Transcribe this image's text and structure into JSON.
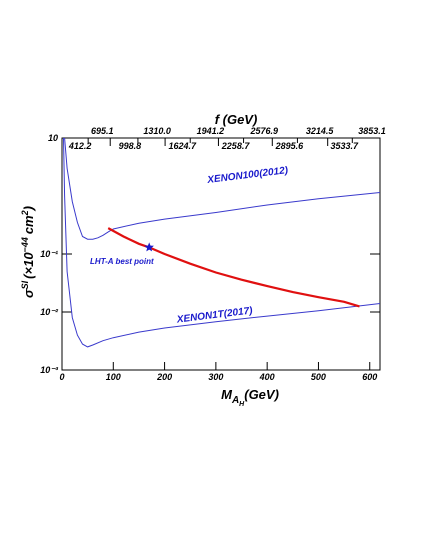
{
  "chart_data": {
    "type": "line",
    "title": "f (GeV)",
    "xlabel": [
      "M",
      "A",
      "H",
      "(GeV)"
    ],
    "ylabel": [
      "σ",
      "SI",
      "(×10",
      "−44",
      "cm",
      "2",
      ")"
    ],
    "xlim": [
      0,
      620
    ],
    "xticks": [
      0,
      100,
      200,
      300,
      400,
      500,
      600
    ],
    "ylim": [
      0.001,
      10
    ],
    "yticks": [
      {
        "value": 0.001,
        "label": "10⁻³"
      },
      {
        "value": 0.01,
        "label": "10⁻²"
      },
      {
        "value": 0.1,
        "label": "10⁻¹"
      },
      10
    ],
    "log_y": true,
    "top_ticks": [
      {
        "value": 51,
        "label": "412.2"
      },
      {
        "value": 94,
        "label": "695.1"
      },
      {
        "value": 148,
        "label": "998.8"
      },
      {
        "value": 201,
        "label": "1310.0"
      },
      {
        "value": 250,
        "label": "1624.7"
      },
      {
        "value": 305,
        "label": "1941.2"
      },
      {
        "value": 354,
        "label": "2258.7"
      },
      {
        "value": 410,
        "label": "2576.9"
      },
      {
        "value": 459,
        "label": "2895.6"
      },
      {
        "value": 518,
        "label": "3214.5"
      },
      {
        "value": 566,
        "label": "3533.7"
      },
      {
        "value": 620,
        "label": "3853.1"
      }
    ],
    "series": [
      {
        "name": "XENON100(2012)",
        "color": "#3a3acc",
        "width": 1,
        "x": [
          5,
          10,
          20,
          30,
          40,
          50,
          60,
          70,
          80,
          90,
          100,
          150,
          200,
          300,
          400,
          500,
          620
        ],
        "values": [
          10,
          3,
          0.8,
          0.35,
          0.2,
          0.18,
          0.18,
          0.19,
          0.21,
          0.24,
          0.27,
          0.34,
          0.4,
          0.52,
          0.7,
          0.9,
          1.15
        ]
      },
      {
        "name": "XENON1T(2017)",
        "color": "#3a3acc",
        "width": 1,
        "x": [
          3,
          5,
          10,
          20,
          30,
          40,
          50,
          60,
          80,
          100,
          150,
          200,
          300,
          400,
          500,
          620
        ],
        "values": [
          10,
          1,
          0.05,
          0.008,
          0.004,
          0.0028,
          0.0025,
          0.0027,
          0.0032,
          0.0036,
          0.0045,
          0.0053,
          0.0068,
          0.0085,
          0.0105,
          0.014
        ]
      },
      {
        "color": "#e01010",
        "width": 2.2,
        "x": [
          90,
          120,
          150,
          170,
          200,
          250,
          300,
          350,
          400,
          450,
          500,
          550,
          580
        ],
        "values": [
          0.28,
          0.2,
          0.15,
          0.13,
          0.1,
          0.068,
          0.048,
          0.036,
          0.028,
          0.022,
          0.018,
          0.015,
          0.0125
        ]
      }
    ],
    "best_point": {
      "name": "LHT-A best point",
      "x": 170,
      "value": 0.13,
      "color": "#1a1acc"
    }
  }
}
